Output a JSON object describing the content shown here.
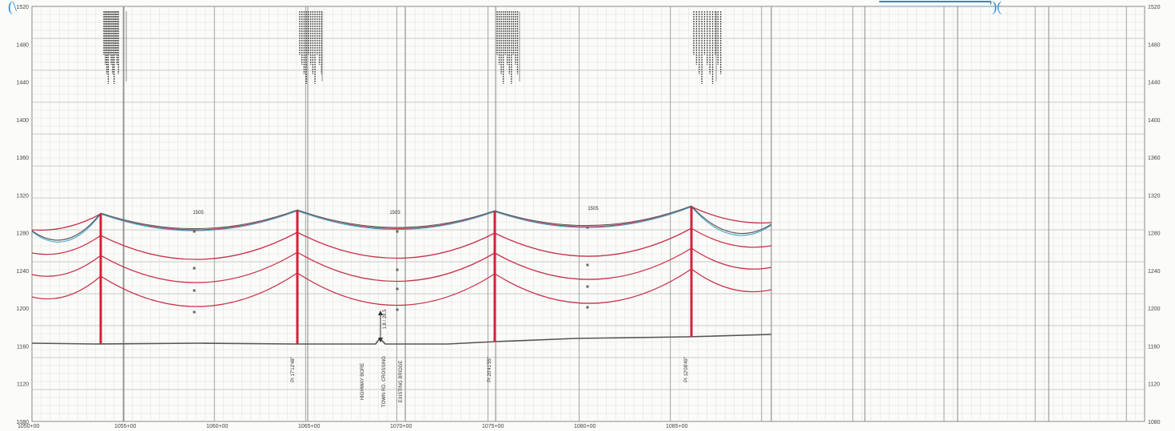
{
  "header_marks": {
    "left": "(\\",
    "right": "')("
  },
  "y_axis": {
    "ticks": [
      "1520",
      "1480",
      "1440",
      "1400",
      "1360",
      "1320",
      "1280",
      "1240",
      "1200",
      "1160",
      "1120",
      "1080"
    ]
  },
  "x_axis": {
    "ticks": [
      "1050+00",
      "1055+00",
      "1060+00",
      "1065+00",
      "1070+00",
      "1075+00",
      "1080+00",
      "1085+00"
    ]
  },
  "spans": [
    {
      "label": "1505"
    },
    {
      "label": "1503"
    },
    {
      "label": "1505"
    }
  ],
  "clearance_label": "1.8 / 28.5",
  "structures": [
    {
      "note": "PI 17'12'48\""
    },
    {
      "note": "PI 20'41'55\""
    },
    {
      "note": "PI 12'08'49\""
    }
  ],
  "crossing_notes": [
    "HIGHWAY BORE",
    "TOWN RD. CROSSING",
    "EXISTING BRIDGE"
  ],
  "colors": {
    "conductor": "#c8334a",
    "pole": "#d4203a",
    "shield_wire": "#555555",
    "shield_wire_cold": "#4aa6c8",
    "ground": "#555555",
    "grid_major": "#b8b8b8",
    "grid_minor": "#dedede"
  }
}
